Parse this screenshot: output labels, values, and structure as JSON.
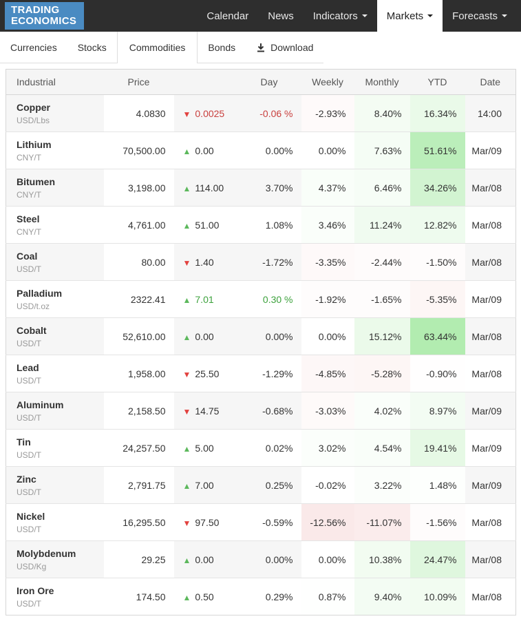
{
  "brand": {
    "line1": "TRADING",
    "line2": "ECONOMICS"
  },
  "nav": {
    "items": [
      {
        "label": "Calendar",
        "caret": false,
        "active": false
      },
      {
        "label": "News",
        "caret": false,
        "active": false
      },
      {
        "label": "Indicators",
        "caret": true,
        "active": false
      },
      {
        "label": "Markets",
        "caret": true,
        "active": true
      },
      {
        "label": "Forecasts",
        "caret": true,
        "active": false
      }
    ]
  },
  "tabs": {
    "items": [
      {
        "label": "Currencies",
        "active": false,
        "icon": null
      },
      {
        "label": "Stocks",
        "active": false,
        "icon": null
      },
      {
        "label": "Commodities",
        "active": true,
        "icon": null
      },
      {
        "label": "Bonds",
        "active": false,
        "icon": null
      },
      {
        "label": "Download",
        "active": false,
        "icon": "download"
      }
    ]
  },
  "icons": {
    "up": "▲",
    "down": "▼"
  },
  "colors": {
    "nav_bg": "#2e2e2e",
    "brand_bg": "#4a8bc2",
    "up": "#5cb85c",
    "down": "#e2413e",
    "text_red": "#c9403e",
    "text_green": "#3da23d",
    "tint_green": "84,213,80",
    "tint_red": "217,83,79"
  },
  "table": {
    "headers": [
      {
        "key": "name",
        "label": "Industrial"
      },
      {
        "key": "price",
        "label": "Price"
      },
      {
        "key": "change",
        "label": ""
      },
      {
        "key": "day",
        "label": "Day"
      },
      {
        "key": "week",
        "label": "Weekly"
      },
      {
        "key": "month",
        "label": "Monthly"
      },
      {
        "key": "ytd",
        "label": "YTD"
      },
      {
        "key": "date",
        "label": "Date"
      }
    ],
    "rows": [
      {
        "name": "Copper",
        "unit": "USD/Lbs",
        "price": "4.0830",
        "direction": "down",
        "change": "0.0025",
        "day": "-0.06 %",
        "weekly": "-2.93%",
        "monthly": "8.40%",
        "ytd": "16.34%",
        "date": "14:00",
        "accent": "red"
      },
      {
        "name": "Lithium",
        "unit": "CNY/T",
        "price": "70,500.00",
        "direction": "up",
        "change": "0.00",
        "day": "0.00%",
        "weekly": "0.00%",
        "monthly": "7.63%",
        "ytd": "51.61%",
        "date": "Mar/09",
        "accent": null
      },
      {
        "name": "Bitumen",
        "unit": "CNY/T",
        "price": "3,198.00",
        "direction": "up",
        "change": "114.00",
        "day": "3.70%",
        "weekly": "4.37%",
        "monthly": "6.46%",
        "ytd": "34.26%",
        "date": "Mar/08",
        "accent": null
      },
      {
        "name": "Steel",
        "unit": "CNY/T",
        "price": "4,761.00",
        "direction": "up",
        "change": "51.00",
        "day": "1.08%",
        "weekly": "3.46%",
        "monthly": "11.24%",
        "ytd": "12.82%",
        "date": "Mar/08",
        "accent": null
      },
      {
        "name": "Coal",
        "unit": "USD/T",
        "price": "80.00",
        "direction": "down",
        "change": "1.40",
        "day": "-1.72%",
        "weekly": "-3.35%",
        "monthly": "-2.44%",
        "ytd": "-1.50%",
        "date": "Mar/08",
        "accent": null
      },
      {
        "name": "Palladium",
        "unit": "USD/t.oz",
        "price": "2322.41",
        "direction": "up",
        "change": "7.01",
        "day": "0.30 %",
        "weekly": "-1.92%",
        "monthly": "-1.65%",
        "ytd": "-5.35%",
        "date": "Mar/09",
        "accent": "green"
      },
      {
        "name": "Cobalt",
        "unit": "USD/T",
        "price": "52,610.00",
        "direction": "up",
        "change": "0.00",
        "day": "0.00%",
        "weekly": "0.00%",
        "monthly": "15.12%",
        "ytd": "63.44%",
        "date": "Mar/08",
        "accent": null
      },
      {
        "name": "Lead",
        "unit": "USD/T",
        "price": "1,958.00",
        "direction": "down",
        "change": "25.50",
        "day": "-1.29%",
        "weekly": "-4.85%",
        "monthly": "-5.28%",
        "ytd": "-0.90%",
        "date": "Mar/08",
        "accent": null
      },
      {
        "name": "Aluminum",
        "unit": "USD/T",
        "price": "2,158.50",
        "direction": "down",
        "change": "14.75",
        "day": "-0.68%",
        "weekly": "-3.03%",
        "monthly": "4.02%",
        "ytd": "8.97%",
        "date": "Mar/09",
        "accent": null
      },
      {
        "name": "Tin",
        "unit": "USD/T",
        "price": "24,257.50",
        "direction": "up",
        "change": "5.00",
        "day": "0.02%",
        "weekly": "3.02%",
        "monthly": "4.54%",
        "ytd": "19.41%",
        "date": "Mar/09",
        "accent": null
      },
      {
        "name": "Zinc",
        "unit": "USD/T",
        "price": "2,791.75",
        "direction": "up",
        "change": "7.00",
        "day": "0.25%",
        "weekly": "-0.02%",
        "monthly": "3.22%",
        "ytd": "1.48%",
        "date": "Mar/09",
        "accent": null
      },
      {
        "name": "Nickel",
        "unit": "USD/T",
        "price": "16,295.50",
        "direction": "down",
        "change": "97.50",
        "day": "-0.59%",
        "weekly": "-12.56%",
        "monthly": "-11.07%",
        "ytd": "-1.56%",
        "date": "Mar/08",
        "accent": null
      },
      {
        "name": "Molybdenum",
        "unit": "USD/Kg",
        "price": "29.25",
        "direction": "up",
        "change": "0.00",
        "day": "0.00%",
        "weekly": "0.00%",
        "monthly": "10.38%",
        "ytd": "24.47%",
        "date": "Mar/08",
        "accent": null
      },
      {
        "name": "Iron Ore",
        "unit": "USD/T",
        "price": "174.50",
        "direction": "up",
        "change": "0.50",
        "day": "0.29%",
        "weekly": "0.87%",
        "monthly": "9.40%",
        "ytd": "10.09%",
        "date": "Mar/08",
        "accent": null
      }
    ]
  }
}
